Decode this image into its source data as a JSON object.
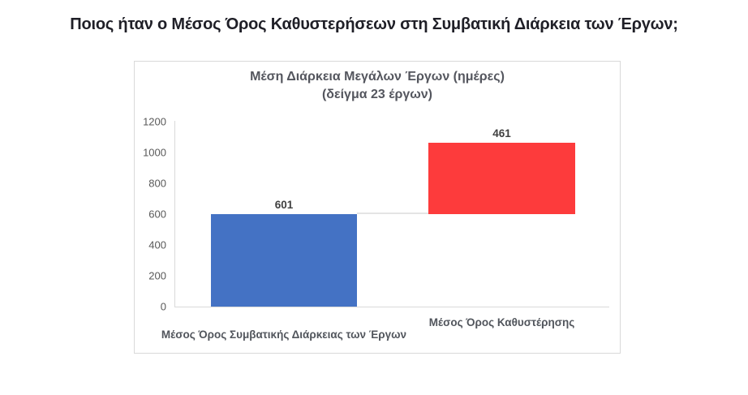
{
  "page": {
    "title": "Ποιος ήταν ο Μέσος Όρος Καθυστερήσεων στη Συμβατική Διάρκεια των Έργων;",
    "background_color": "#ffffff"
  },
  "chart_data": {
    "type": "bar",
    "subtype": "floating-waterfall",
    "title": "Μέση Διάρκεια Μεγάλων Έργων (ημέρες)",
    "subtitle": "(δείγμα 23 έργων)",
    "categories": [
      "Μέσος Όρος Συμβατικής Διάρκειας των Έργων",
      "Μέσος Όρος Καθυστέρησης"
    ],
    "values": [
      601,
      461
    ],
    "bar_starts": [
      0,
      601
    ],
    "bar_ends": [
      601,
      1062
    ],
    "data_labels": [
      "601",
      "461"
    ],
    "bar_colors": [
      "#4472C4",
      "#FD3B3C"
    ],
    "yticks": [
      0,
      200,
      400,
      600,
      800,
      1000,
      1200
    ],
    "ylim": [
      0,
      1200
    ],
    "xlabel": "",
    "ylabel": "",
    "grid": false,
    "legend": false,
    "connector_between_bars": true,
    "axis_line_color": "#d9d9d9",
    "tick_text_color": "#595959",
    "category_text_color": "#51555c",
    "data_label_color": "#404040",
    "title_text_color": "#54565e"
  }
}
